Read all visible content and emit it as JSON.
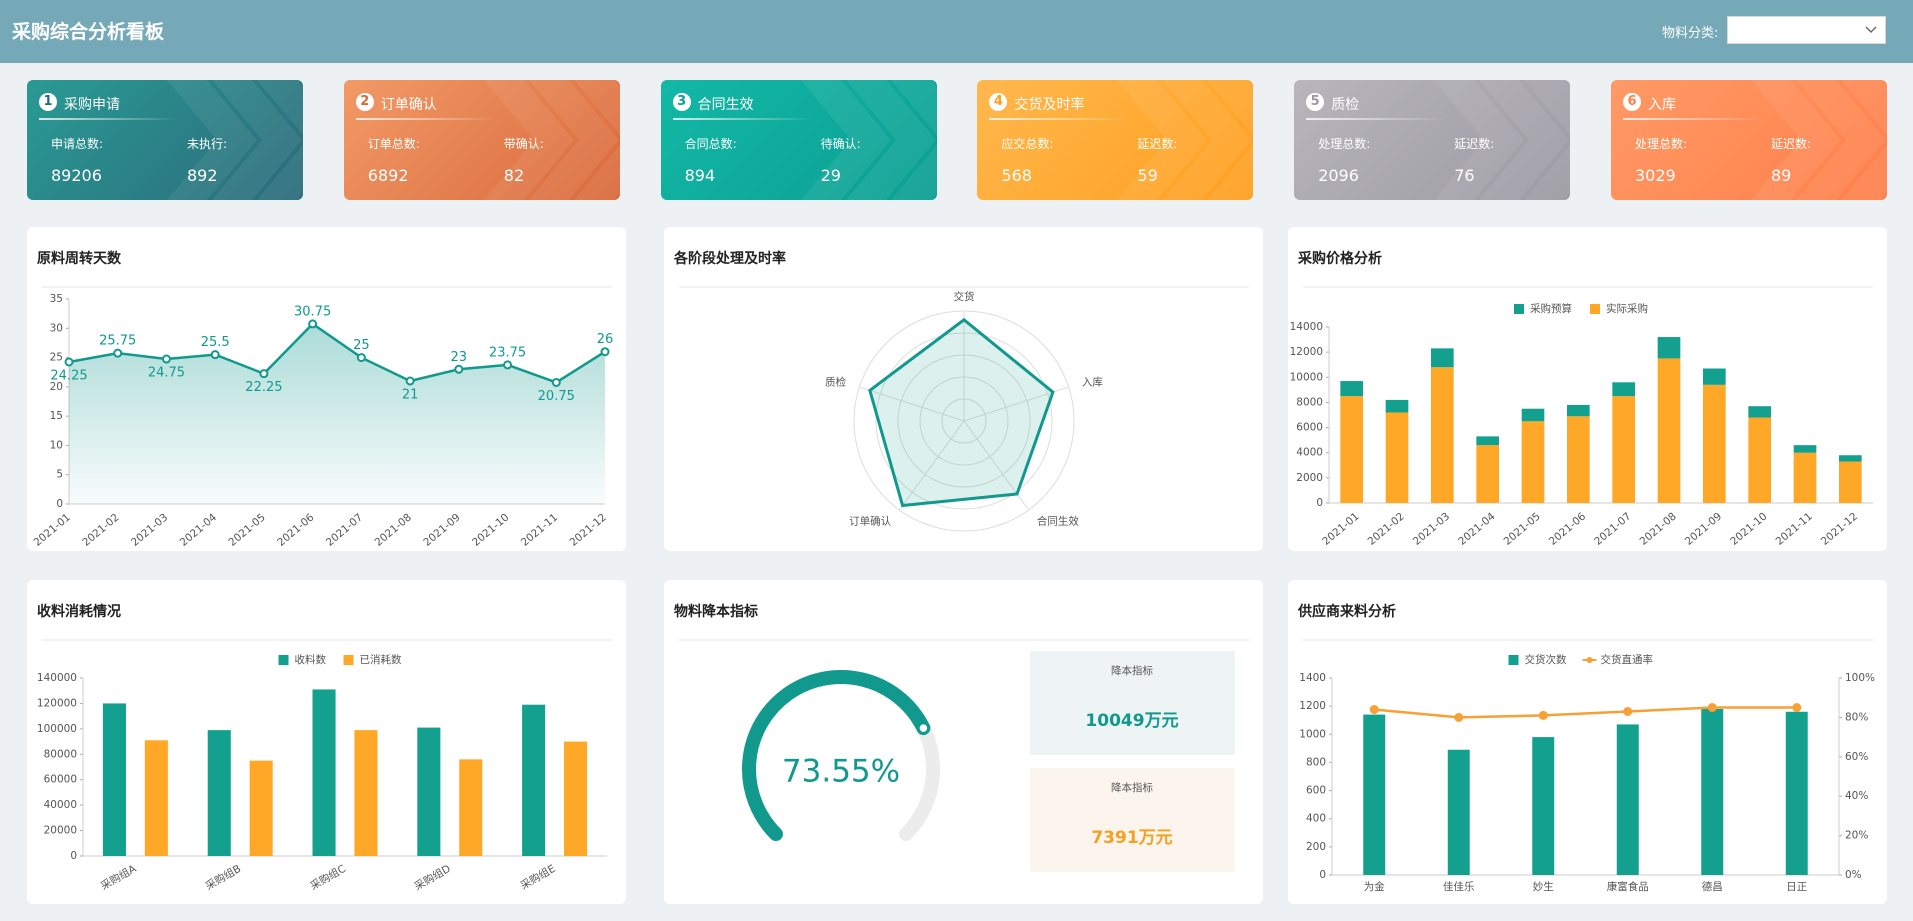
{
  "header": {
    "title": "采购综合分析看板",
    "filter_label": "物料分类:"
  },
  "cards": [
    {
      "step": 1,
      "title": "采购申请",
      "colors": [
        "#2a9a94",
        "#2b6a7a"
      ],
      "metrics": [
        {
          "label": "申请总数:",
          "value": 89206
        },
        {
          "label": "未执行:",
          "value": 892
        }
      ]
    },
    {
      "step": 2,
      "title": "订单确认",
      "colors": [
        "#f29a66",
        "#d9693b"
      ],
      "metrics": [
        {
          "label": "订单总数:",
          "value": 6892
        },
        {
          "label": "带确认:",
          "value": 82
        }
      ]
    },
    {
      "step": 3,
      "title": "合同生效",
      "colors": [
        "#13b8a6",
        "#0b9e92"
      ],
      "metrics": [
        {
          "label": "合同总数:",
          "value": 894
        },
        {
          "label": "待确认:",
          "value": 29
        }
      ]
    },
    {
      "step": 4,
      "title": "交货及时率",
      "colors": [
        "#ffb84d",
        "#ff9f1f"
      ],
      "metrics": [
        {
          "label": "应交总数:",
          "value": 568
        },
        {
          "label": "延迟数:",
          "value": 59
        }
      ]
    },
    {
      "step": 5,
      "title": "质检",
      "colors": [
        "#b8b6bc",
        "#9c9aa2"
      ],
      "metrics": [
        {
          "label": "处理总数:",
          "value": 2096
        },
        {
          "label": "延迟数:",
          "value": 76
        }
      ]
    },
    {
      "step": 6,
      "title": "入库",
      "colors": [
        "#ff9a66",
        "#ff7f4a"
      ],
      "metrics": [
        {
          "label": "处理总数:",
          "value": 3029
        },
        {
          "label": "延迟数:",
          "value": 89
        }
      ]
    }
  ],
  "chart_data": [
    {
      "type": "line",
      "title": "原料周转天数",
      "color": "#11998e",
      "categories": [
        "2021-01",
        "2021-02",
        "2021-03",
        "2021-04",
        "2021-05",
        "2021-06",
        "2021-07",
        "2021-08",
        "2021-09",
        "2021-10",
        "2021-11",
        "2021-12"
      ],
      "values": [
        24.25,
        25.75,
        24.75,
        25.5,
        22.25,
        30.75,
        25,
        21,
        23,
        23.75,
        20.75,
        26
      ],
      "ylim": [
        0,
        35
      ],
      "yticks": [
        0,
        5,
        10,
        15,
        20,
        25,
        30,
        35
      ]
    },
    {
      "type": "radar",
      "title": "各阶段处理及时率",
      "color": "#11998e",
      "indicators": [
        "交货",
        "入库",
        "合同生效",
        "订单确认",
        "质检"
      ],
      "values": [
        92,
        85,
        82,
        95,
        90
      ],
      "max": 100
    },
    {
      "type": "stacked_bar",
      "title": "采购价格分析",
      "categories": [
        "2021-01",
        "2021-02",
        "2021-03",
        "2021-04",
        "2021-05",
        "2021-06",
        "2021-07",
        "2021-08",
        "2021-09",
        "2021-10",
        "2021-11",
        "2021-12"
      ],
      "series": [
        {
          "name": "采购预算",
          "color": "#13a08f",
          "values": [
            1200,
            1000,
            1500,
            700,
            1000,
            900,
            1100,
            1700,
            1300,
            900,
            600,
            500
          ]
        },
        {
          "name": "实际采购",
          "color": "#ffa726",
          "values": [
            8500,
            7200,
            10800,
            4600,
            6500,
            6900,
            8500,
            11500,
            9400,
            6800,
            4000,
            3300
          ]
        }
      ],
      "ylim": [
        0,
        14000
      ],
      "yticks": [
        0,
        2000,
        4000,
        6000,
        8000,
        10000,
        12000,
        14000
      ]
    },
    {
      "type": "bar",
      "title": "收料消耗情况",
      "categories": [
        "采购组A",
        "采购组B",
        "采购组C",
        "采购组D",
        "采购组E"
      ],
      "series": [
        {
          "name": "收料数",
          "color": "#13a08f",
          "values": [
            120000,
            99000,
            131000,
            101000,
            119000
          ]
        },
        {
          "name": "已消耗数",
          "color": "#ffa726",
          "values": [
            91000,
            75000,
            99000,
            76000,
            90000
          ]
        }
      ],
      "ylim": [
        0,
        140000
      ],
      "yticks": [
        0,
        20000,
        40000,
        60000,
        80000,
        100000,
        120000,
        140000
      ]
    },
    {
      "type": "gauge",
      "title": "物料降本指标",
      "color": "#11998e",
      "value": 73.55,
      "value_label": "73.55%",
      "max": 100,
      "boxes": [
        {
          "label": "降本指标",
          "value": 10049,
          "value_label": "10049万元",
          "color": "#11998e",
          "background": "#eef3f4"
        },
        {
          "label": "降本指标",
          "value": 7391,
          "value_label": "7391万元",
          "color": "#f5a020",
          "background": "#fbf5ee"
        }
      ]
    },
    {
      "type": "bar_line",
      "title": "供应商来料分析",
      "categories": [
        "为金",
        "佳佳乐",
        "妙生",
        "康富食品",
        "德昌",
        "日正"
      ],
      "series": [
        {
          "name": "交货次数",
          "color": "#13a08f",
          "values": [
            1140,
            890,
            980,
            1070,
            1180,
            1160
          ]
        },
        {
          "name": "交货直通率",
          "color": "#f7a035",
          "axis": "y2",
          "values": [
            84,
            80,
            81,
            83,
            85,
            85
          ]
        }
      ],
      "ylim": [
        0,
        1400
      ],
      "yticks": [
        0,
        200,
        400,
        600,
        800,
        1000,
        1200,
        1400
      ],
      "y2lim": [
        0,
        100
      ],
      "y2ticks": [
        {
          "value": 0,
          "label": "0%"
        },
        {
          "value": 20,
          "label": "20%"
        },
        {
          "value": 40,
          "label": "40%"
        },
        {
          "value": 60,
          "label": "60%"
        },
        {
          "value": 80,
          "label": "80%"
        },
        {
          "value": 100,
          "label": "100%"
        }
      ]
    }
  ]
}
